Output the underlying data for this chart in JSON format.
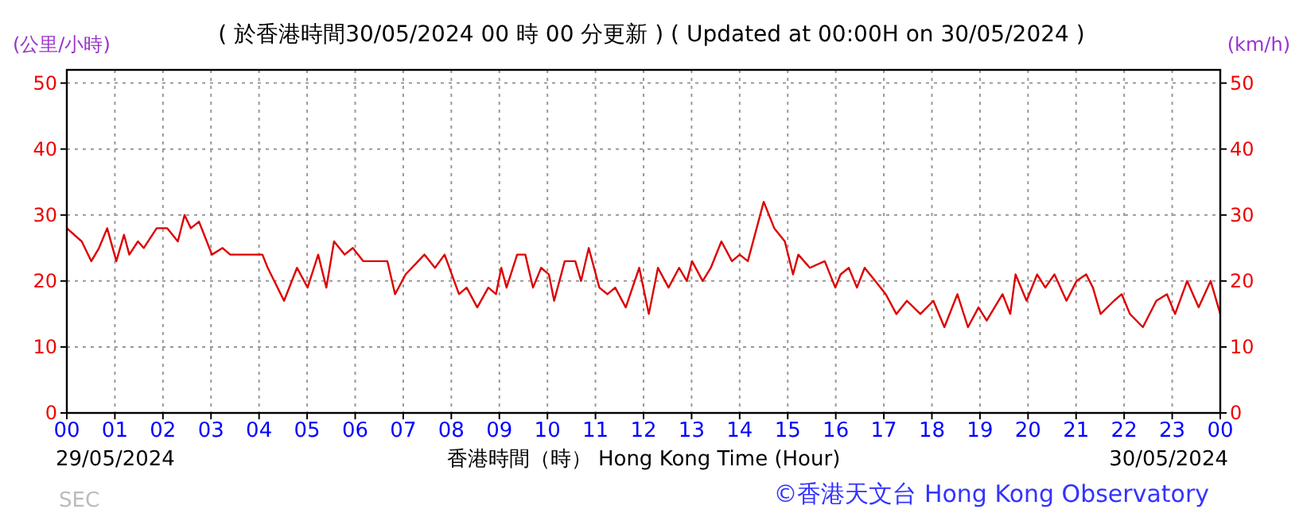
{
  "chart_data": {
    "type": "line",
    "title": "( 於香港時間30/05/2024 00 時 00 分更新 ) ( Updated at 00:00H on 30/05/2024 )",
    "ylabel": "(公里/小時)",
    "y2label": "(km/h)",
    "xlabel": "香港時間（時） Hong Kong Time (Hour)",
    "annotations": [
      "29/05/2024",
      "30/05/2024",
      "SEC",
      "©香港天文台 Hong Kong Observatory"
    ],
    "series": [
      {
        "color": "#dd0000",
        "x": [
          0,
          0.31,
          0.51,
          0.67,
          0.84,
          1.03,
          1.19,
          1.3,
          1.48,
          1.6,
          1.87,
          2.09,
          2.31,
          2.45,
          2.58,
          2.75,
          3.02,
          3.24,
          3.4,
          3.58,
          3.75,
          4.07,
          4.18,
          4.52,
          4.79,
          5.01,
          5.23,
          5.4,
          5.56,
          5.78,
          5.95,
          6.17,
          6.67,
          6.83,
          7.05,
          7.44,
          7.66,
          7.86,
          8.16,
          8.32,
          8.54,
          8.77,
          8.93,
          9.04,
          9.15,
          9.37,
          9.54,
          9.7,
          9.87,
          10.03,
          10.14,
          10.36,
          10.58,
          10.7,
          10.86,
          11.08,
          11.25,
          11.41,
          11.63,
          11.91,
          12.11,
          12.3,
          12.52,
          12.74,
          12.9,
          13.01,
          13.23,
          13.4,
          13.62,
          13.84,
          14.0,
          14.17,
          14.5,
          14.72,
          14.94,
          15.11,
          15.22,
          15.46,
          15.77,
          15.99,
          16.1,
          16.27,
          16.44,
          16.6,
          16.82,
          17.04,
          17.26,
          17.48,
          17.76,
          18.03,
          18.26,
          18.53,
          18.75,
          18.97,
          19.14,
          19.47,
          19.63,
          19.74,
          19.97,
          20.19,
          20.36,
          20.55,
          20.8,
          21.01,
          21.21,
          21.35,
          21.51,
          21.79,
          21.95,
          22.12,
          22.39,
          22.67,
          22.89,
          23.06,
          23.31,
          23.55,
          23.8,
          24
        ],
        "values": [
          28,
          26,
          23,
          25,
          28,
          23,
          27,
          24,
          26,
          25,
          28,
          28,
          26,
          30,
          28,
          29,
          24,
          25,
          24,
          24,
          24,
          24,
          22,
          17,
          22,
          19,
          24,
          19,
          26,
          24,
          25,
          23,
          23,
          18,
          21,
          24,
          22,
          24,
          18,
          19,
          16,
          19,
          18,
          22,
          19,
          24,
          24,
          19,
          22,
          21,
          17,
          23,
          23,
          20,
          25,
          19,
          18,
          19,
          16,
          22,
          15,
          22,
          19,
          22,
          20,
          23,
          20,
          22,
          26,
          23,
          24,
          23,
          32,
          28,
          26,
          21,
          24,
          22,
          23,
          19,
          21,
          22,
          19,
          22,
          20,
          18,
          15,
          17,
          15,
          17,
          13,
          18,
          13,
          16,
          14,
          18,
          15,
          21,
          17,
          21,
          19,
          21,
          17,
          20,
          21,
          19,
          15,
          17,
          18,
          15,
          13,
          17,
          18,
          15,
          20,
          16,
          20,
          15
        ]
      }
    ],
    "xlim": [
      0,
      24
    ],
    "xticks": [
      {
        "value": 0,
        "label": "00"
      },
      {
        "value": 1,
        "label": "01"
      },
      {
        "value": 2,
        "label": "02"
      },
      {
        "value": 3,
        "label": "03"
      },
      {
        "value": 4,
        "label": "04"
      },
      {
        "value": 5,
        "label": "05"
      },
      {
        "value": 6,
        "label": "06"
      },
      {
        "value": 7,
        "label": "07"
      },
      {
        "value": 8,
        "label": "08"
      },
      {
        "value": 9,
        "label": "09"
      },
      {
        "value": 10,
        "label": "10"
      },
      {
        "value": 11,
        "label": "11"
      },
      {
        "value": 12,
        "label": "12"
      },
      {
        "value": 13,
        "label": "13"
      },
      {
        "value": 14,
        "label": "14"
      },
      {
        "value": 15,
        "label": "15"
      },
      {
        "value": 16,
        "label": "16"
      },
      {
        "value": 17,
        "label": "17"
      },
      {
        "value": 18,
        "label": "18"
      },
      {
        "value": 19,
        "label": "19"
      },
      {
        "value": 20,
        "label": "20"
      },
      {
        "value": 21,
        "label": "21"
      },
      {
        "value": 22,
        "label": "22"
      },
      {
        "value": 23,
        "label": "23"
      },
      {
        "value": 24,
        "label": "00"
      }
    ],
    "ylim": [
      0,
      52
    ],
    "yticks": [
      0,
      10,
      20,
      30,
      40,
      50
    ],
    "y2lim": [
      0,
      52
    ],
    "y2ticks": [
      0,
      10,
      20,
      30,
      40,
      50
    ],
    "grid": true,
    "line_style": "solid"
  }
}
